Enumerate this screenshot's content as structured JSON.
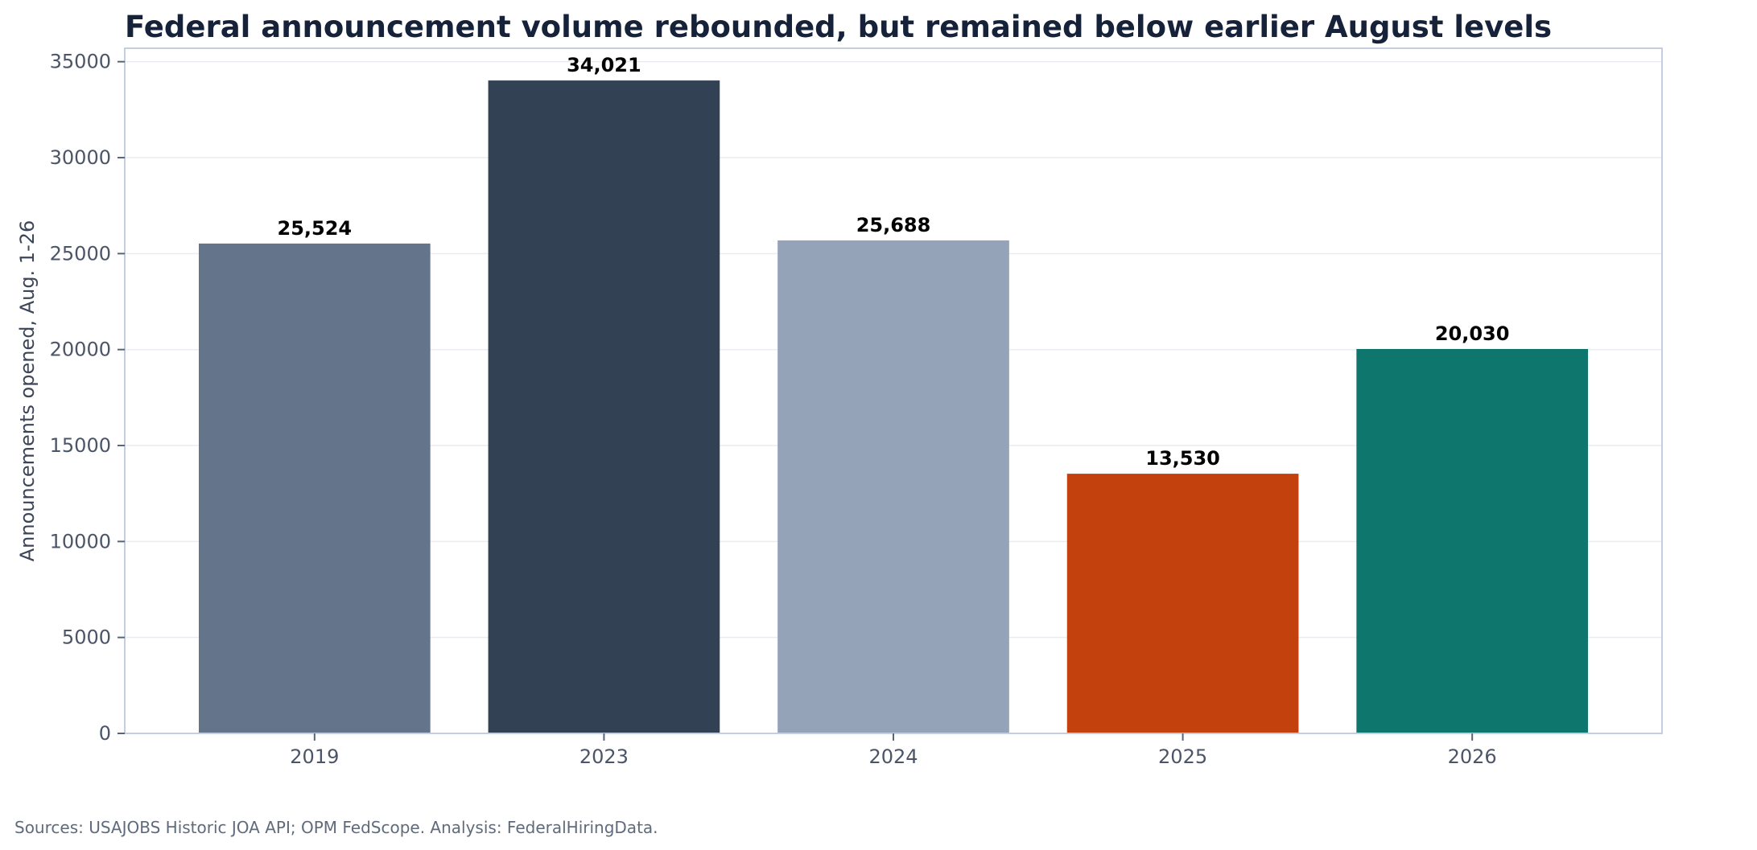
{
  "chart_data": {
    "type": "bar",
    "title": "Federal announcement volume rebounded, but remained below earlier August levels",
    "xlabel": "",
    "ylabel": "Announcements opened, Aug. 1-26",
    "categories": [
      "2019",
      "2023",
      "2024",
      "2025",
      "2026"
    ],
    "values": [
      25524,
      34021,
      25688,
      13530,
      20030
    ],
    "data_labels": [
      "25,524",
      "34,021",
      "25,688",
      "13,530",
      "20,030"
    ],
    "colors": [
      "#64748b",
      "#334155",
      "#94a3b8",
      "#c2410c",
      "#0f766e"
    ],
    "ylim": [
      0,
      35700
    ],
    "yticks": [
      0,
      5000,
      10000,
      15000,
      20000,
      25000,
      30000,
      35000
    ],
    "ytick_labels": [
      "0",
      "5000",
      "10000",
      "15000",
      "20000",
      "25000",
      "30000",
      "35000"
    ],
    "grid": true,
    "legend": "none"
  },
  "footer": {
    "source": "Sources: USAJOBS Historic JOA API; OPM FedScope. Analysis: FederalHiringData."
  }
}
